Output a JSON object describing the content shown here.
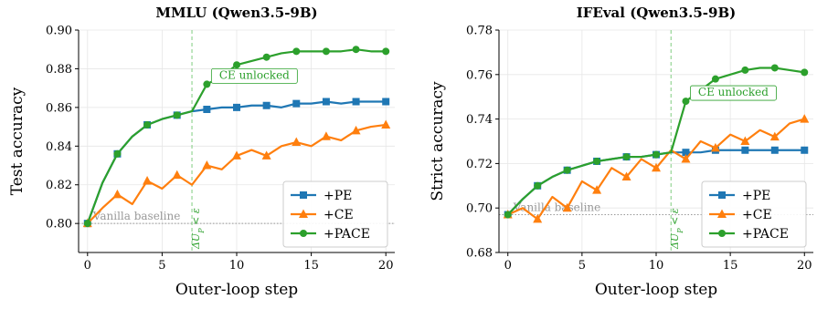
{
  "chart_data": [
    {
      "type": "line",
      "title": "MMLU (Qwen3.5-9B)",
      "xlabel": "Outer-loop step",
      "ylabel": "Test accuracy",
      "xlim": [
        -0.6,
        20.6
      ],
      "ylim": [
        0.785,
        0.9
      ],
      "xticks": [
        0,
        5,
        10,
        15,
        20
      ],
      "yticks": [
        0.8,
        0.82,
        0.84,
        0.86,
        0.88,
        0.9
      ],
      "ytick_labels": [
        "0.80",
        "0.82",
        "0.84",
        "0.86",
        "0.88",
        "0.90"
      ],
      "grid": true,
      "legend": "lower-right",
      "series": [
        {
          "name": "+PE",
          "color": "#1f77b4",
          "marker": "square",
          "x": [
            0,
            1,
            2,
            3,
            4,
            5,
            6,
            7,
            8,
            9,
            10,
            11,
            12,
            13,
            14,
            15,
            16,
            17,
            18,
            19,
            20
          ],
          "y": [
            0.8,
            0.821,
            0.836,
            0.845,
            0.851,
            0.854,
            0.856,
            0.858,
            0.859,
            0.86,
            0.86,
            0.861,
            0.861,
            0.86,
            0.862,
            0.862,
            0.863,
            0.862,
            0.863,
            0.863,
            0.863
          ],
          "marker_every": 2
        },
        {
          "name": "+CE",
          "color": "#ff7f0e",
          "marker": "triangle",
          "x": [
            0,
            1,
            2,
            3,
            4,
            5,
            6,
            7,
            8,
            9,
            10,
            11,
            12,
            13,
            14,
            15,
            16,
            17,
            18,
            19,
            20
          ],
          "y": [
            0.8,
            0.808,
            0.815,
            0.81,
            0.822,
            0.818,
            0.825,
            0.82,
            0.83,
            0.828,
            0.835,
            0.838,
            0.835,
            0.84,
            0.842,
            0.84,
            0.845,
            0.843,
            0.848,
            0.85,
            0.851
          ],
          "marker_every": 2
        },
        {
          "name": "+PACE",
          "color": "#2ca02c",
          "marker": "circle",
          "x": [
            0,
            1,
            2,
            3,
            4,
            5,
            6,
            7,
            8,
            9,
            10,
            11,
            12,
            13,
            14,
            15,
            16,
            17,
            18,
            19,
            20
          ],
          "y": [
            0.8,
            0.821,
            0.836,
            0.845,
            0.851,
            0.854,
            0.856,
            0.858,
            0.872,
            0.876,
            0.882,
            0.884,
            0.886,
            0.888,
            0.889,
            0.889,
            0.889,
            0.889,
            0.89,
            0.889,
            0.889
          ],
          "marker_every": 2
        }
      ],
      "baseline": {
        "value": 0.8,
        "label": "Vanilla baseline"
      },
      "vline": {
        "x": 7,
        "label": "ΔU_P < ε"
      },
      "annotation": {
        "text": "CE unlocked",
        "x": 8,
        "y": 0.872
      }
    },
    {
      "type": "line",
      "title": "IFEval (Qwen3.5-9B)",
      "xlabel": "Outer-loop step",
      "ylabel": "Strict accuracy",
      "xlim": [
        -0.6,
        20.6
      ],
      "ylim": [
        0.68,
        0.78
      ],
      "xticks": [
        0,
        5,
        10,
        15,
        20
      ],
      "yticks": [
        0.68,
        0.7,
        0.72,
        0.74,
        0.76,
        0.78
      ],
      "ytick_labels": [
        "0.68",
        "0.70",
        "0.72",
        "0.74",
        "0.76",
        "0.78"
      ],
      "grid": true,
      "legend": "lower-right",
      "series": [
        {
          "name": "+PE",
          "color": "#1f77b4",
          "marker": "square",
          "x": [
            0,
            1,
            2,
            3,
            4,
            5,
            6,
            7,
            8,
            9,
            10,
            11,
            12,
            13,
            14,
            15,
            16,
            17,
            18,
            19,
            20
          ],
          "y": [
            0.697,
            0.704,
            0.71,
            0.714,
            0.717,
            0.719,
            0.721,
            0.722,
            0.723,
            0.723,
            0.724,
            0.725,
            0.725,
            0.725,
            0.726,
            0.726,
            0.726,
            0.726,
            0.726,
            0.726,
            0.726
          ],
          "marker_every": 2
        },
        {
          "name": "+CE",
          "color": "#ff7f0e",
          "marker": "triangle",
          "x": [
            0,
            1,
            2,
            3,
            4,
            5,
            6,
            7,
            8,
            9,
            10,
            11,
            12,
            13,
            14,
            15,
            16,
            17,
            18,
            19,
            20
          ],
          "y": [
            0.697,
            0.7,
            0.695,
            0.705,
            0.7,
            0.712,
            0.708,
            0.718,
            0.714,
            0.722,
            0.718,
            0.726,
            0.722,
            0.73,
            0.727,
            0.733,
            0.73,
            0.735,
            0.732,
            0.738,
            0.74
          ],
          "marker_every": 2
        },
        {
          "name": "+PACE",
          "color": "#2ca02c",
          "marker": "circle",
          "x": [
            0,
            1,
            2,
            3,
            4,
            5,
            6,
            7,
            8,
            9,
            10,
            11,
            12,
            13,
            14,
            15,
            16,
            17,
            18,
            19,
            20
          ],
          "y": [
            0.697,
            0.704,
            0.71,
            0.714,
            0.717,
            0.719,
            0.721,
            0.722,
            0.723,
            0.723,
            0.724,
            0.725,
            0.748,
            0.753,
            0.758,
            0.76,
            0.762,
            0.763,
            0.763,
            0.762,
            0.761
          ],
          "marker_every": 2
        }
      ],
      "baseline": {
        "value": 0.697,
        "label": "Vanilla baseline"
      },
      "vline": {
        "x": 11,
        "label": "ΔU_P < ε"
      },
      "annotation": {
        "text": "CE unlocked",
        "x": 12,
        "y": 0.748
      }
    }
  ]
}
